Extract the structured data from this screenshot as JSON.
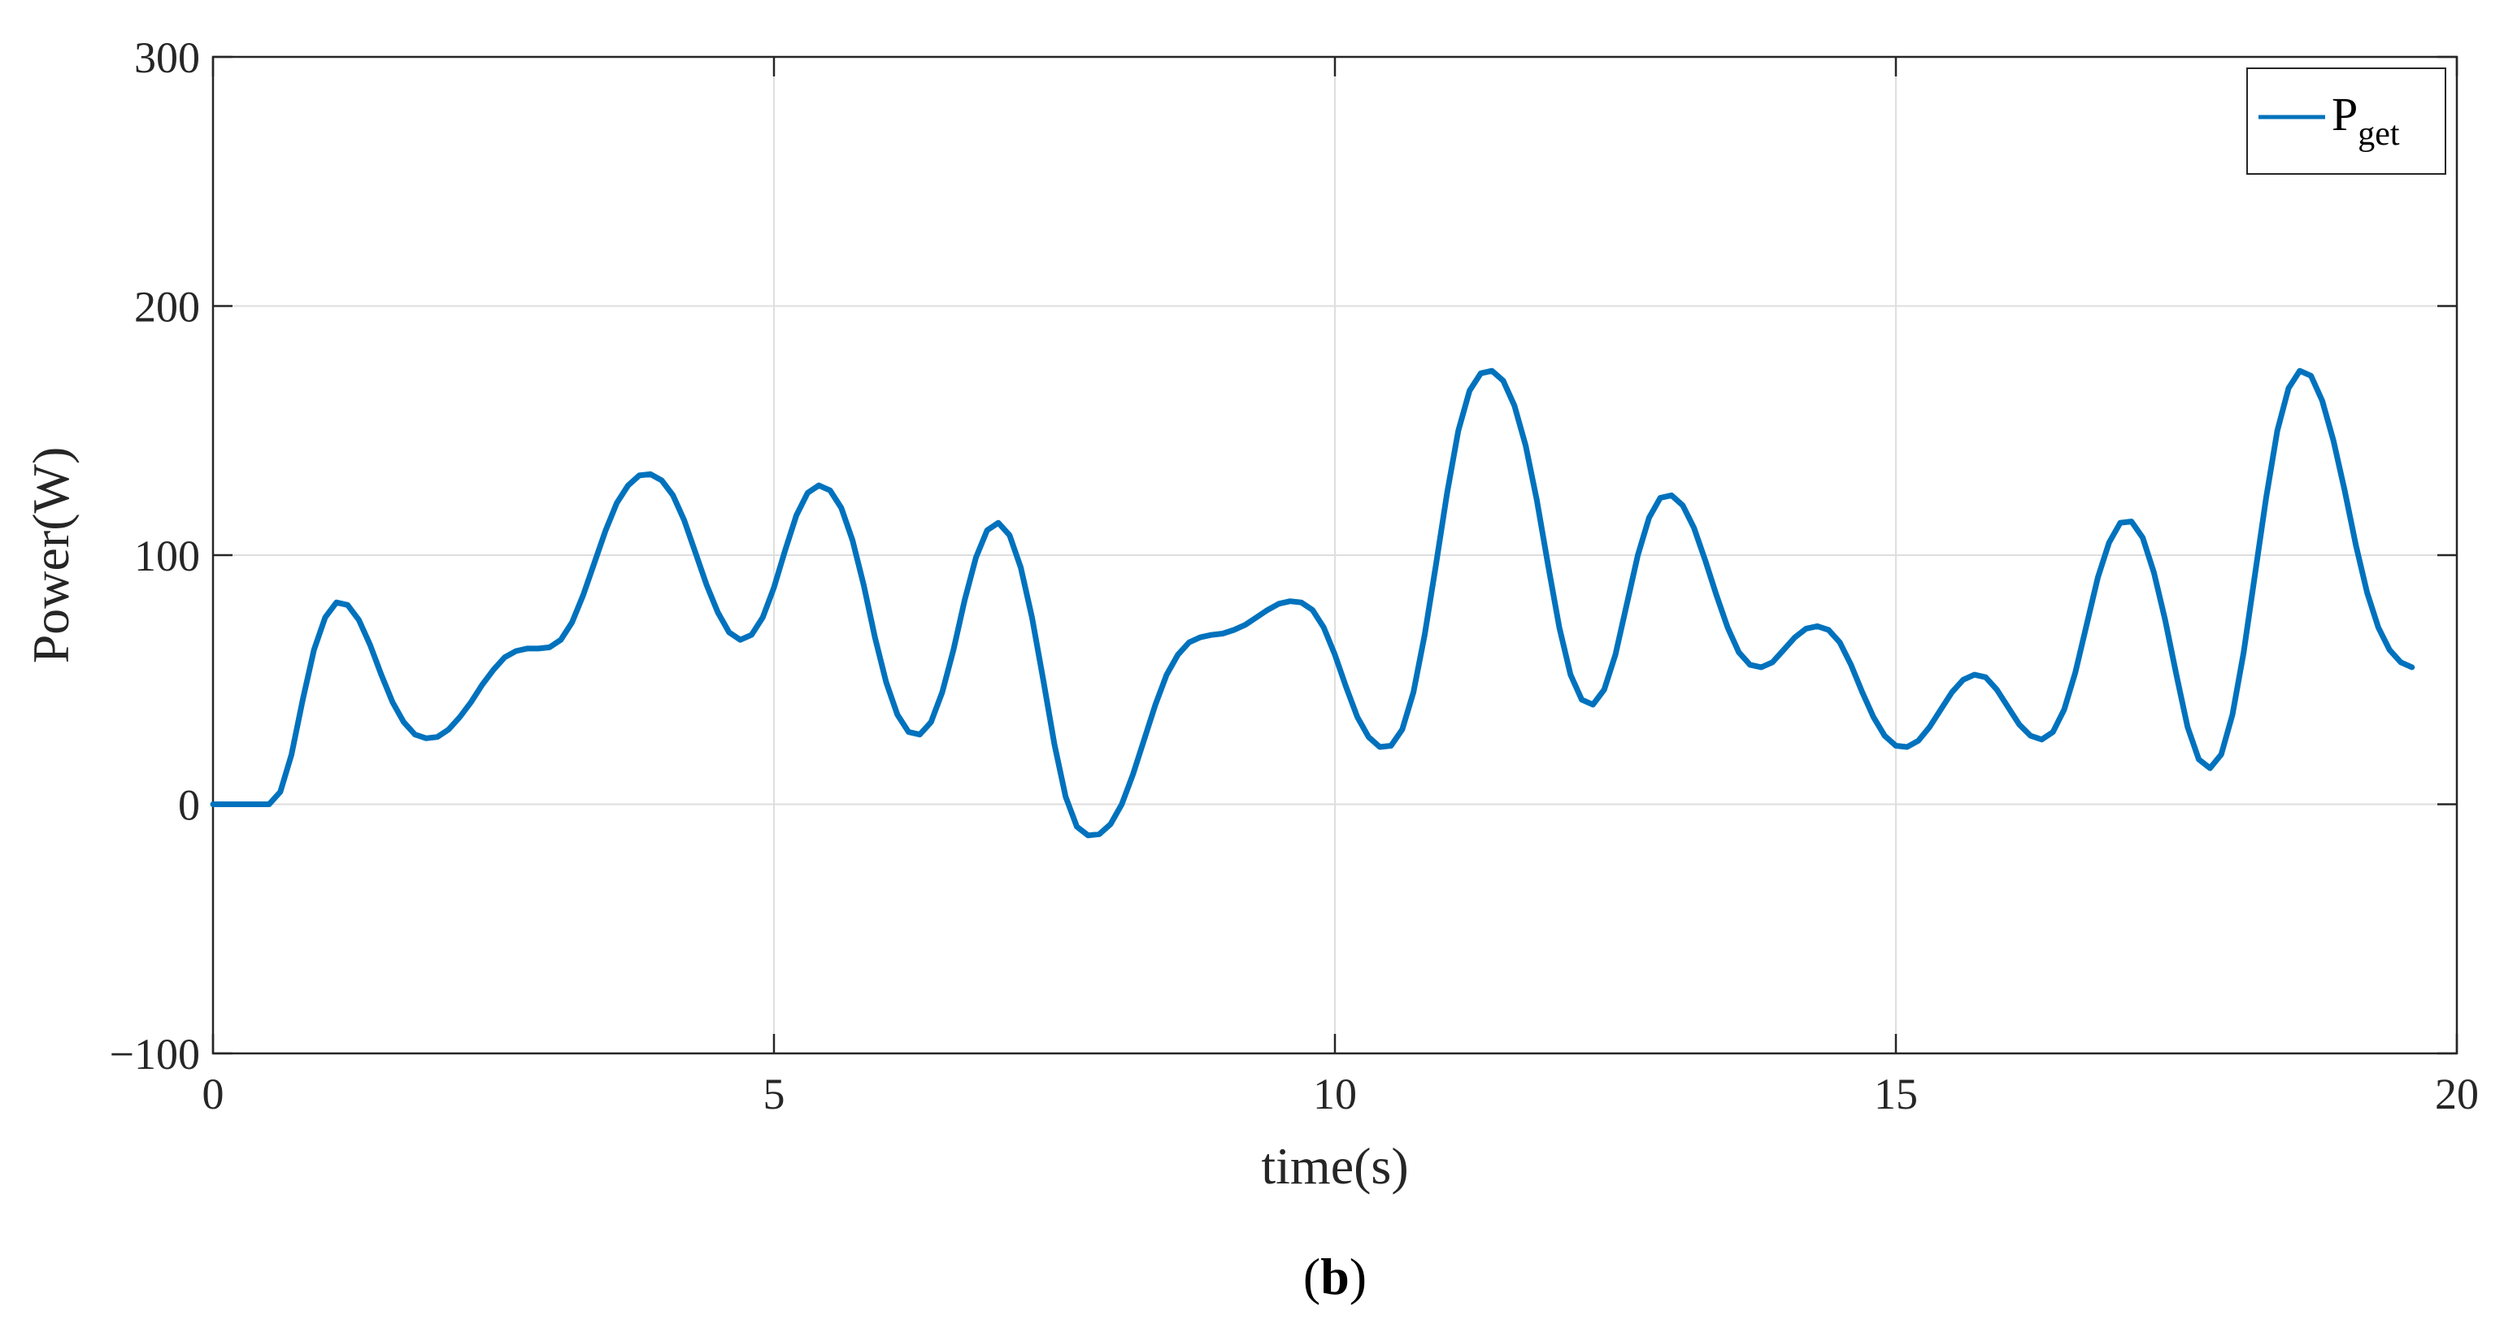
{
  "chart_data": {
    "type": "line",
    "title": "",
    "xlabel": "time(s)",
    "ylabel": "Power(W)",
    "caption_prefix": "(",
    "caption_letter": "b",
    "caption_suffix": ")",
    "xlim": [
      0,
      20
    ],
    "ylim": [
      -100,
      300
    ],
    "x_ticks": [
      0,
      5,
      10,
      15,
      20
    ],
    "y_ticks": [
      -100,
      0,
      100,
      200,
      300
    ],
    "x_tick_labels": [
      "0",
      "5",
      "10",
      "15",
      "20"
    ],
    "y_tick_labels": [
      "−100",
      "0",
      "100",
      "200",
      "300"
    ],
    "grid": true,
    "legend_placement": "top-right",
    "series": [
      {
        "name_main": "P",
        "name_sub": "get",
        "color": "#0072BD",
        "points": [
          [
            0,
            0
          ],
          [
            0.35,
            0
          ],
          [
            0.5,
            0
          ],
          [
            0.6,
            5
          ],
          [
            0.7,
            20
          ],
          [
            0.8,
            42
          ],
          [
            0.9,
            62
          ],
          [
            1.0,
            75
          ],
          [
            1.1,
            81
          ],
          [
            1.2,
            80
          ],
          [
            1.3,
            74
          ],
          [
            1.4,
            64
          ],
          [
            1.5,
            52
          ],
          [
            1.6,
            41
          ],
          [
            1.7,
            33
          ],
          [
            1.8,
            28
          ],
          [
            1.9,
            26.5
          ],
          [
            2.0,
            27
          ],
          [
            2.1,
            30
          ],
          [
            2.2,
            35
          ],
          [
            2.3,
            41
          ],
          [
            2.4,
            48
          ],
          [
            2.5,
            54
          ],
          [
            2.6,
            59
          ],
          [
            2.7,
            61.5
          ],
          [
            2.8,
            62.5
          ],
          [
            2.9,
            62.5
          ],
          [
            3.0,
            63
          ],
          [
            3.1,
            66
          ],
          [
            3.2,
            73
          ],
          [
            3.3,
            84
          ],
          [
            3.4,
            97
          ],
          [
            3.5,
            110
          ],
          [
            3.6,
            121
          ],
          [
            3.7,
            128
          ],
          [
            3.8,
            132
          ],
          [
            3.9,
            132.5
          ],
          [
            4.0,
            130
          ],
          [
            4.1,
            124
          ],
          [
            4.2,
            114
          ],
          [
            4.3,
            101
          ],
          [
            4.4,
            88
          ],
          [
            4.5,
            77
          ],
          [
            4.6,
            69
          ],
          [
            4.7,
            66
          ],
          [
            4.8,
            68
          ],
          [
            4.9,
            75
          ],
          [
            5.0,
            87
          ],
          [
            5.1,
            102
          ],
          [
            5.2,
            116
          ],
          [
            5.3,
            125
          ],
          [
            5.4,
            128
          ],
          [
            5.5,
            126
          ],
          [
            5.6,
            119
          ],
          [
            5.7,
            106
          ],
          [
            5.8,
            88
          ],
          [
            5.9,
            67
          ],
          [
            6.0,
            49
          ],
          [
            6.1,
            36
          ],
          [
            6.2,
            29
          ],
          [
            6.3,
            28
          ],
          [
            6.4,
            33
          ],
          [
            6.5,
            45
          ],
          [
            6.6,
            62
          ],
          [
            6.7,
            82
          ],
          [
            6.8,
            99
          ],
          [
            6.9,
            110
          ],
          [
            7.0,
            113
          ],
          [
            7.1,
            108
          ],
          [
            7.2,
            95
          ],
          [
            7.3,
            75
          ],
          [
            7.4,
            50
          ],
          [
            7.5,
            24
          ],
          [
            7.6,
            3
          ],
          [
            7.7,
            -9
          ],
          [
            7.8,
            -12.5
          ],
          [
            7.9,
            -12
          ],
          [
            8.0,
            -8
          ],
          [
            8.1,
            0
          ],
          [
            8.2,
            12
          ],
          [
            8.3,
            26
          ],
          [
            8.4,
            40
          ],
          [
            8.5,
            52
          ],
          [
            8.6,
            60
          ],
          [
            8.7,
            65
          ],
          [
            8.8,
            67
          ],
          [
            8.9,
            68
          ],
          [
            9.0,
            68.5
          ],
          [
            9.1,
            70
          ],
          [
            9.2,
            72
          ],
          [
            9.3,
            75
          ],
          [
            9.4,
            78
          ],
          [
            9.5,
            80.5
          ],
          [
            9.6,
            81.5
          ],
          [
            9.7,
            81
          ],
          [
            9.8,
            78
          ],
          [
            9.9,
            71
          ],
          [
            10.0,
            60
          ],
          [
            10.1,
            47
          ],
          [
            10.2,
            35
          ],
          [
            10.3,
            27
          ],
          [
            10.4,
            23
          ],
          [
            10.5,
            23.5
          ],
          [
            10.6,
            30
          ],
          [
            10.7,
            45
          ],
          [
            10.8,
            68
          ],
          [
            10.9,
            96
          ],
          [
            11.0,
            125
          ],
          [
            11.1,
            150
          ],
          [
            11.2,
            166
          ],
          [
            11.3,
            173
          ],
          [
            11.4,
            174
          ],
          [
            11.5,
            170
          ],
          [
            11.6,
            160
          ],
          [
            11.7,
            144
          ],
          [
            11.8,
            122
          ],
          [
            11.9,
            96
          ],
          [
            12.0,
            71
          ],
          [
            12.1,
            52
          ],
          [
            12.2,
            42
          ],
          [
            12.3,
            40
          ],
          [
            12.4,
            46
          ],
          [
            12.5,
            60
          ],
          [
            12.6,
            80
          ],
          [
            12.7,
            100
          ],
          [
            12.8,
            115
          ],
          [
            12.9,
            123
          ],
          [
            13.0,
            124
          ],
          [
            13.1,
            120
          ],
          [
            13.2,
            111
          ],
          [
            13.3,
            98
          ],
          [
            13.4,
            84
          ],
          [
            13.5,
            71
          ],
          [
            13.6,
            61
          ],
          [
            13.7,
            56
          ],
          [
            13.8,
            55
          ],
          [
            13.9,
            57
          ],
          [
            14.0,
            62
          ],
          [
            14.1,
            67
          ],
          [
            14.2,
            70.5
          ],
          [
            14.3,
            71.5
          ],
          [
            14.4,
            70
          ],
          [
            14.5,
            65
          ],
          [
            14.6,
            56
          ],
          [
            14.7,
            45
          ],
          [
            14.8,
            35
          ],
          [
            14.9,
            27.5
          ],
          [
            15.0,
            23.5
          ],
          [
            15.1,
            23
          ],
          [
            15.2,
            25.5
          ],
          [
            15.3,
            31
          ],
          [
            15.4,
            38
          ],
          [
            15.5,
            45
          ],
          [
            15.6,
            50
          ],
          [
            15.7,
            52
          ],
          [
            15.8,
            51
          ],
          [
            15.9,
            46
          ],
          [
            16.0,
            39
          ],
          [
            16.1,
            32
          ],
          [
            16.2,
            27.5
          ],
          [
            16.3,
            26
          ],
          [
            16.4,
            29
          ],
          [
            16.5,
            38
          ],
          [
            16.6,
            53
          ],
          [
            16.7,
            72
          ],
          [
            16.8,
            91
          ],
          [
            16.9,
            105
          ],
          [
            17.0,
            113
          ],
          [
            17.1,
            113.5
          ],
          [
            17.2,
            107
          ],
          [
            17.3,
            93
          ],
          [
            17.4,
            74
          ],
          [
            17.5,
            52
          ],
          [
            17.6,
            31
          ],
          [
            17.7,
            18
          ],
          [
            17.8,
            14.5
          ],
          [
            17.9,
            20
          ],
          [
            18.0,
            36
          ],
          [
            18.1,
            61
          ],
          [
            18.2,
            92
          ],
          [
            18.3,
            123
          ],
          [
            18.4,
            150
          ],
          [
            18.5,
            167
          ],
          [
            18.6,
            174
          ],
          [
            18.7,
            172
          ],
          [
            18.8,
            162
          ],
          [
            18.9,
            146
          ],
          [
            19.0,
            126
          ],
          [
            19.1,
            104
          ],
          [
            19.2,
            85
          ],
          [
            19.3,
            71
          ],
          [
            19.4,
            62
          ],
          [
            19.5,
            57
          ],
          [
            19.6,
            55
          ]
        ]
      }
    ]
  }
}
